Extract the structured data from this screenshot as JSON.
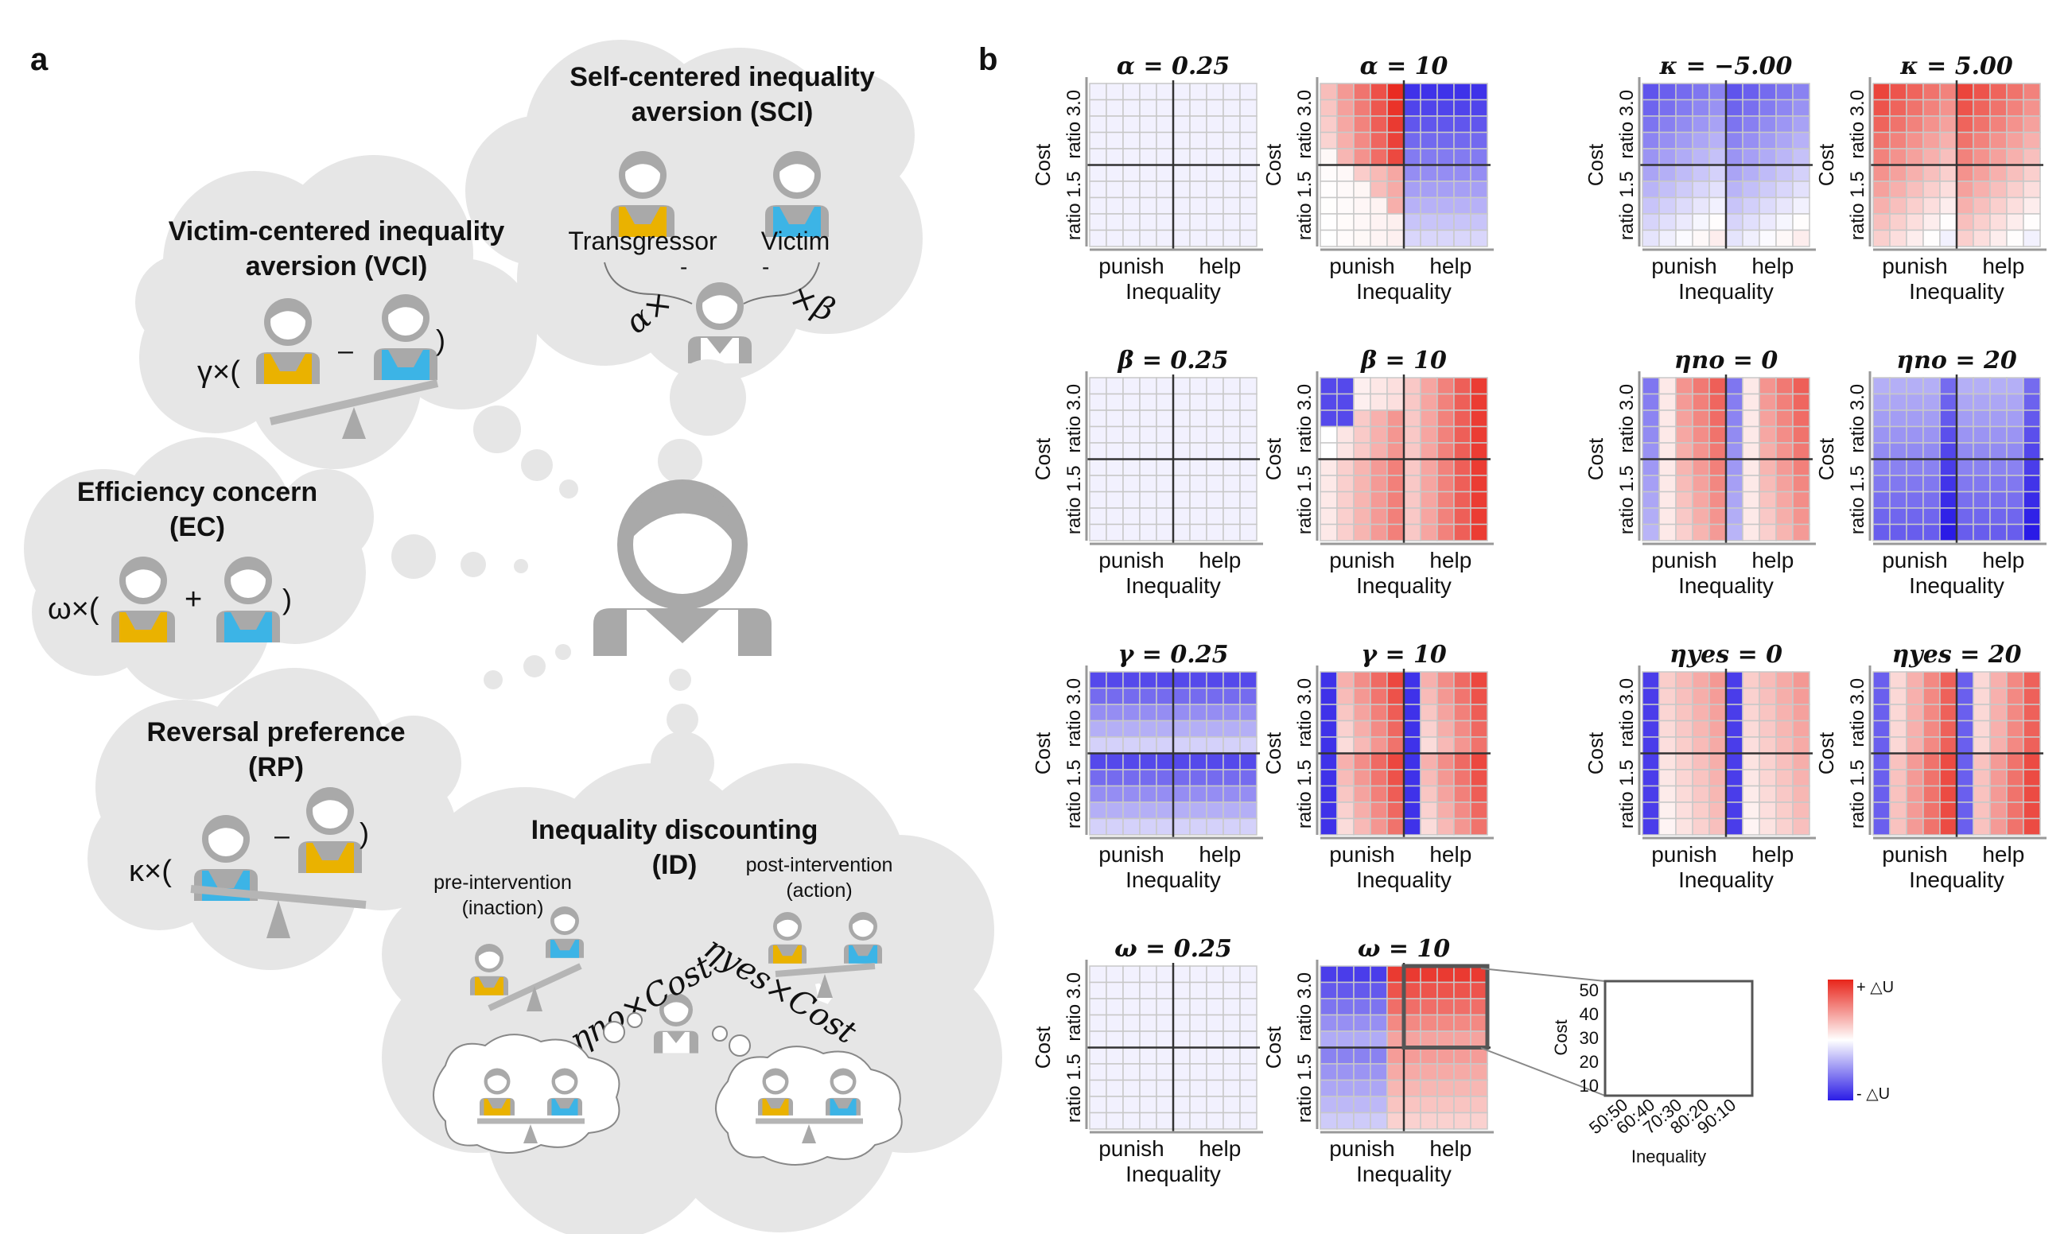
{
  "panel_a": {
    "label": "a",
    "sci_title_line1": "Self-centered inequality",
    "sci_title_line2": "aversion (SCI)",
    "transgressor": "Transgressor",
    "victim": "Victim",
    "alpha_term": "α×",
    "beta_term": "×β",
    "vci_title_line1": "Victim-centered inequality",
    "vci_title_line2": "aversion (VCI)",
    "vci_formula_prefix": "γ×(",
    "vci_formula_op": "–",
    "vci_formula_close": ")",
    "ec_title_line1": "Efficiency concern",
    "ec_title_line2": "(EC)",
    "ec_formula_prefix": "ω×(",
    "ec_formula_op": "+",
    "ec_formula_close": ")",
    "rp_title_line1": "Reversal preference",
    "rp_title_line2": "(RP)",
    "rp_formula_prefix": "κ×(",
    "rp_formula_op": "–",
    "rp_formula_close": ")",
    "id_title_line1": "Inequality discounting",
    "id_title_line2": "(ID)",
    "pre_label_line1": "pre-intervention",
    "pre_label_line2": "(inaction)",
    "post_label_line1": "post-intervention",
    "post_label_line2": "(action)",
    "eta_no_term": "ηno×Cost",
    "eta_yes_term": "ηyes×Cost"
  },
  "panel_b": {
    "label": "b",
    "axis_y_cost": "Cost",
    "axis_y_top": "ratio 3.0",
    "axis_y_bottom": "ratio 1.5",
    "axis_x_left": "punish",
    "axis_x_right": "help",
    "axis_x_title": "Inequality",
    "titles": [
      "α = 0.25",
      "α = 10",
      "κ = −5.00",
      "κ = 5.00",
      "β = 0.25",
      "β = 10",
      "ηno = 0",
      "ηno = 20",
      "γ = 0.25",
      "γ = 10",
      "ηyes = 0",
      "ηyes = 20",
      "ω = 0.25",
      "ω = 10"
    ],
    "inset": {
      "ylabel": "Cost",
      "yticks": [
        "50",
        "40",
        "30",
        "20",
        "10"
      ],
      "xticks": [
        "50:50",
        "60:40",
        "70:30",
        "80:20",
        "90:10"
      ],
      "xlabel": "Inequality"
    },
    "colorbar": {
      "top_label": "+ △U",
      "bottom_label": "- △U",
      "top_color": "#e8241a",
      "mid_color": "#ffffff",
      "bottom_color": "#2a1be6"
    }
  },
  "colors": {
    "cloud": "#e6e6e6",
    "person_gray": "#a9a9a9",
    "transgressor_yellow": "#eab200",
    "victim_blue": "#3cb4e6",
    "grid_line": "#bdbdbd"
  }
}
